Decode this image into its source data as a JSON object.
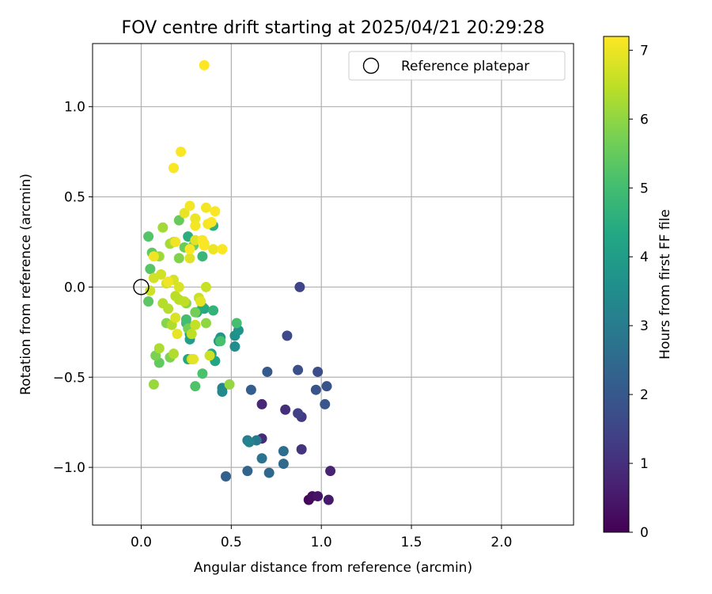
{
  "chart_data": {
    "type": "scatter",
    "title": "FOV centre drift starting at 2025/04/21 20:29:28",
    "xlabel": "Angular distance from reference (arcmin)",
    "ylabel": "Rotation from reference (arcmin)",
    "xlim": [
      -0.27,
      2.4
    ],
    "ylim": [
      -1.32,
      1.35
    ],
    "xticks": [
      0.0,
      0.5,
      1.0,
      1.5,
      2.0
    ],
    "xtick_labels": [
      "0.0",
      "0.5",
      "1.0",
      "1.5",
      "2.0"
    ],
    "yticks": [
      1.0,
      0.5,
      0.0,
      -0.5,
      -1.0
    ],
    "ytick_labels": [
      "1.0",
      "0.5",
      "0.0",
      "−0.5",
      "−1.0"
    ],
    "grid": true,
    "legend": {
      "position": "top-right",
      "label": "Reference platepar",
      "marker": "open-circle"
    },
    "reference_point": {
      "x": 0.0,
      "y": 0.0
    },
    "colorbar": {
      "label": "Hours from first FF file",
      "min": 0,
      "max": 7.2,
      "ticks": [
        0,
        1,
        2,
        3,
        4,
        5,
        6,
        7
      ],
      "tick_labels": [
        "0",
        "1",
        "2",
        "3",
        "4",
        "5",
        "6",
        "7"
      ],
      "colormap": "viridis"
    },
    "points": [
      {
        "x": 0.93,
        "y": -1.18,
        "h": 0.1
      },
      {
        "x": 0.95,
        "y": -1.16,
        "h": 0.25
      },
      {
        "x": 0.98,
        "y": -1.16,
        "h": 0.4
      },
      {
        "x": 1.04,
        "y": -1.18,
        "h": 0.5
      },
      {
        "x": 1.05,
        "y": -1.02,
        "h": 0.7
      },
      {
        "x": 0.67,
        "y": -0.65,
        "h": 0.8
      },
      {
        "x": 0.67,
        "y": -0.84,
        "h": 0.9
      },
      {
        "x": 0.8,
        "y": -0.68,
        "h": 1.0
      },
      {
        "x": 0.89,
        "y": -0.9,
        "h": 1.1
      },
      {
        "x": 0.89,
        "y": -0.72,
        "h": 1.25
      },
      {
        "x": 0.87,
        "y": -0.7,
        "h": 1.4
      },
      {
        "x": 0.88,
        "y": 0.0,
        "h": 1.5
      },
      {
        "x": 0.81,
        "y": -0.27,
        "h": 1.6
      },
      {
        "x": 0.98,
        "y": -0.47,
        "h": 1.7
      },
      {
        "x": 0.87,
        "y": -0.46,
        "h": 1.75
      },
      {
        "x": 1.03,
        "y": -0.55,
        "h": 1.85
      },
      {
        "x": 0.97,
        "y": -0.57,
        "h": 1.9
      },
      {
        "x": 1.02,
        "y": -0.65,
        "h": 1.95
      },
      {
        "x": 0.7,
        "y": -0.47,
        "h": 2.05
      },
      {
        "x": 0.61,
        "y": -0.57,
        "h": 2.15
      },
      {
        "x": 0.47,
        "y": -1.05,
        "h": 2.25
      },
      {
        "x": 0.59,
        "y": -1.02,
        "h": 2.35
      },
      {
        "x": 0.71,
        "y": -1.03,
        "h": 2.4
      },
      {
        "x": 0.79,
        "y": -0.98,
        "h": 2.5
      },
      {
        "x": 0.79,
        "y": -0.91,
        "h": 2.6
      },
      {
        "x": 0.67,
        "y": -0.95,
        "h": 2.75
      },
      {
        "x": 0.64,
        "y": -0.85,
        "h": 2.9
      },
      {
        "x": 0.59,
        "y": -0.85,
        "h": 3.0
      },
      {
        "x": 0.6,
        "y": -0.86,
        "h": 3.2
      },
      {
        "x": 0.45,
        "y": -0.56,
        "h": 3.3
      },
      {
        "x": 0.45,
        "y": -0.58,
        "h": 3.4
      },
      {
        "x": 0.52,
        "y": -0.33,
        "h": 3.5
      },
      {
        "x": 0.52,
        "y": -0.27,
        "h": 3.6
      },
      {
        "x": 0.54,
        "y": -0.24,
        "h": 3.7
      },
      {
        "x": 0.44,
        "y": -0.28,
        "h": 3.8
      },
      {
        "x": 0.43,
        "y": -0.3,
        "h": 3.9
      },
      {
        "x": 0.27,
        "y": -0.29,
        "h": 4.0
      },
      {
        "x": 0.27,
        "y": -0.26,
        "h": 4.1
      },
      {
        "x": 0.39,
        "y": -0.37,
        "h": 4.2
      },
      {
        "x": 0.41,
        "y": -0.41,
        "h": 4.25
      },
      {
        "x": 0.26,
        "y": -0.4,
        "h": 4.3
      },
      {
        "x": 0.35,
        "y": -0.12,
        "h": 4.35
      },
      {
        "x": 0.31,
        "y": -0.14,
        "h": 4.4
      },
      {
        "x": 0.34,
        "y": -0.11,
        "h": 4.45
      },
      {
        "x": 0.26,
        "y": 0.28,
        "h": 4.5
      },
      {
        "x": 0.4,
        "y": 0.34,
        "h": 4.6
      },
      {
        "x": 0.4,
        "y": -0.13,
        "h": 4.7
      },
      {
        "x": 0.34,
        "y": 0.17,
        "h": 4.8
      },
      {
        "x": 0.25,
        "y": -0.2,
        "h": 4.9
      },
      {
        "x": 0.25,
        "y": -0.18,
        "h": 5.0
      },
      {
        "x": 0.53,
        "y": -0.2,
        "h": 5.05
      },
      {
        "x": 0.44,
        "y": -0.3,
        "h": 5.1
      },
      {
        "x": 0.34,
        "y": -0.48,
        "h": 5.15
      },
      {
        "x": 0.3,
        "y": -0.55,
        "h": 5.2
      },
      {
        "x": 0.04,
        "y": 0.28,
        "h": 5.25
      },
      {
        "x": 0.05,
        "y": 0.1,
        "h": 5.3
      },
      {
        "x": 0.04,
        "y": -0.08,
        "h": 5.35
      },
      {
        "x": 0.06,
        "y": 0.19,
        "h": 5.4
      },
      {
        "x": 0.1,
        "y": -0.42,
        "h": 5.45
      },
      {
        "x": 0.21,
        "y": 0.37,
        "h": 5.5
      },
      {
        "x": 0.24,
        "y": 0.22,
        "h": 5.55
      },
      {
        "x": 0.29,
        "y": 0.23,
        "h": 5.6
      },
      {
        "x": 0.3,
        "y": -0.14,
        "h": 5.65
      },
      {
        "x": 0.26,
        "y": -0.23,
        "h": 5.7
      },
      {
        "x": 0.08,
        "y": -0.38,
        "h": 5.75
      },
      {
        "x": 0.16,
        "y": -0.39,
        "h": 5.8
      },
      {
        "x": 0.21,
        "y": 0.16,
        "h": 5.85
      },
      {
        "x": 0.14,
        "y": -0.2,
        "h": 5.9
      },
      {
        "x": 0.25,
        "y": -0.09,
        "h": 5.95
      },
      {
        "x": 0.36,
        "y": -0.2,
        "h": 6.0
      },
      {
        "x": 0.49,
        "y": -0.54,
        "h": 6.05
      },
      {
        "x": 0.07,
        "y": -0.54,
        "h": 6.1
      },
      {
        "x": 0.1,
        "y": 0.17,
        "h": 6.15
      },
      {
        "x": 0.12,
        "y": 0.33,
        "h": 6.2
      },
      {
        "x": 0.16,
        "y": 0.24,
        "h": 6.25
      },
      {
        "x": 0.18,
        "y": 0.25,
        "h": 6.3
      },
      {
        "x": 0.1,
        "y": -0.34,
        "h": 6.3
      },
      {
        "x": 0.18,
        "y": -0.37,
        "h": 6.35
      },
      {
        "x": 0.17,
        "y": -0.21,
        "h": 6.35
      },
      {
        "x": 0.12,
        "y": -0.09,
        "h": 6.4
      },
      {
        "x": 0.15,
        "y": -0.12,
        "h": 6.4
      },
      {
        "x": 0.19,
        "y": -0.05,
        "h": 6.45
      },
      {
        "x": 0.21,
        "y": -0.07,
        "h": 6.45
      },
      {
        "x": 0.24,
        "y": -0.08,
        "h": 6.5
      },
      {
        "x": 0.28,
        "y": -0.26,
        "h": 6.5
      },
      {
        "x": 0.3,
        "y": -0.21,
        "h": 6.55
      },
      {
        "x": 0.28,
        "y": -0.4,
        "h": 6.55
      },
      {
        "x": 0.32,
        "y": -0.06,
        "h": 6.6
      },
      {
        "x": 0.36,
        "y": 0.0,
        "h": 6.6
      },
      {
        "x": 0.38,
        "y": -0.38,
        "h": 6.65
      },
      {
        "x": 0.05,
        "y": -0.02,
        "h": 6.65
      },
      {
        "x": 0.07,
        "y": 0.05,
        "h": 6.7
      },
      {
        "x": 0.11,
        "y": 0.07,
        "h": 6.7
      },
      {
        "x": 0.14,
        "y": 0.02,
        "h": 6.75
      },
      {
        "x": 0.18,
        "y": 0.04,
        "h": 6.75
      },
      {
        "x": 0.21,
        "y": 0.0,
        "h": 6.8
      },
      {
        "x": 0.19,
        "y": -0.17,
        "h": 6.8
      },
      {
        "x": 0.27,
        "y": 0.16,
        "h": 6.85
      },
      {
        "x": 0.3,
        "y": 0.26,
        "h": 6.85
      },
      {
        "x": 0.33,
        "y": -0.08,
        "h": 6.9
      },
      {
        "x": 0.29,
        "y": -0.4,
        "h": 6.9
      },
      {
        "x": 0.2,
        "y": -0.26,
        "h": 6.95
      },
      {
        "x": 0.24,
        "y": 0.41,
        "h": 6.95
      },
      {
        "x": 0.3,
        "y": 0.38,
        "h": 7.0
      },
      {
        "x": 0.35,
        "y": 0.24,
        "h": 7.0
      },
      {
        "x": 0.4,
        "y": 0.21,
        "h": 7.0
      },
      {
        "x": 0.07,
        "y": 0.17,
        "h": 7.05
      },
      {
        "x": 0.15,
        "y": 0.03,
        "h": 7.05
      },
      {
        "x": 0.19,
        "y": 0.25,
        "h": 7.05
      },
      {
        "x": 0.27,
        "y": 0.45,
        "h": 7.1
      },
      {
        "x": 0.3,
        "y": 0.34,
        "h": 7.1
      },
      {
        "x": 0.36,
        "y": 0.44,
        "h": 7.1
      },
      {
        "x": 0.37,
        "y": 0.35,
        "h": 7.1
      },
      {
        "x": 0.39,
        "y": 0.36,
        "h": 7.15
      },
      {
        "x": 0.41,
        "y": 0.42,
        "h": 7.15
      },
      {
        "x": 0.45,
        "y": 0.21,
        "h": 7.15
      },
      {
        "x": 0.34,
        "y": 0.26,
        "h": 7.15
      },
      {
        "x": 0.35,
        "y": 0.23,
        "h": 7.15
      },
      {
        "x": 0.27,
        "y": 0.21,
        "h": 7.15
      },
      {
        "x": 0.18,
        "y": 0.66,
        "h": 7.15
      },
      {
        "x": 0.22,
        "y": 0.75,
        "h": 7.15
      },
      {
        "x": 0.35,
        "y": 1.23,
        "h": 7.2
      }
    ]
  }
}
